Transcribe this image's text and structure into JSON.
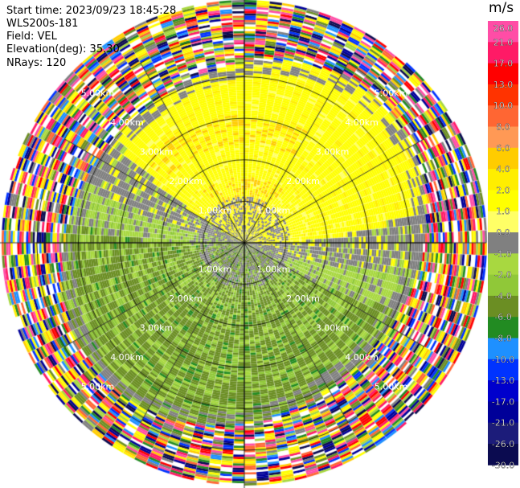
{
  "info": {
    "start_time": "Start time: 2023/09/23 18:45:28",
    "instrument": "WLS200s-181",
    "field": "Field: VEL",
    "elevation": "Elevation(deg): 35.30",
    "nrays": "NRays: 120"
  },
  "chart_data": {
    "type": "heatmap",
    "projection": "polar-ppi",
    "title": "",
    "field": "VEL",
    "units": "m/s",
    "n_rays": 120,
    "elevation_deg": 35.3,
    "range_rings_km": [
      1.0,
      2.0,
      3.0,
      4.0,
      5.0
    ],
    "range_ring_labels": [
      "1.00km",
      "2.00km",
      "3.00km",
      "4.00km",
      "5.00km"
    ],
    "max_range_km": 5.85,
    "spokes_deg": [
      0,
      30,
      60,
      90,
      120,
      150,
      180,
      210,
      240,
      270,
      300,
      330
    ],
    "colorbar": {
      "label": "m/s",
      "tick_labels": [
        "26.0",
        "21.0",
        "17.0",
        "13.0",
        "10.0",
        "8.0",
        "6.0",
        "4.0",
        "2.0",
        "1.0",
        "0.0",
        "-1.0",
        "-2.0",
        "-4.0",
        "-6.0",
        "-8.0",
        "-10.0",
        "-13.0",
        "-17.0",
        "-21.0",
        "-26.0",
        "-30.0"
      ],
      "colors": [
        "#ff4da6",
        "#ff1a66",
        "#ff0000",
        "#ff3300",
        "#ff6633",
        "#ff9955",
        "#ffcc00",
        "#ffee00",
        "#ffff00",
        "#ffff66",
        "#808080",
        "#a8d840",
        "#90c838",
        "#6b8e23",
        "#228b22",
        "#1e90ff",
        "#0033ff",
        "#0000cc",
        "#000099",
        "#1c1c7a",
        "#0b0b50"
      ]
    },
    "sectors": [
      {
        "from_deg": 280,
        "to_deg": 90,
        "dominant": "positive",
        "value_range": [
          1,
          4
        ]
      },
      {
        "from_deg": 90,
        "to_deg": 280,
        "dominant": "negative",
        "value_range": [
          -4,
          -1
        ]
      }
    ]
  }
}
